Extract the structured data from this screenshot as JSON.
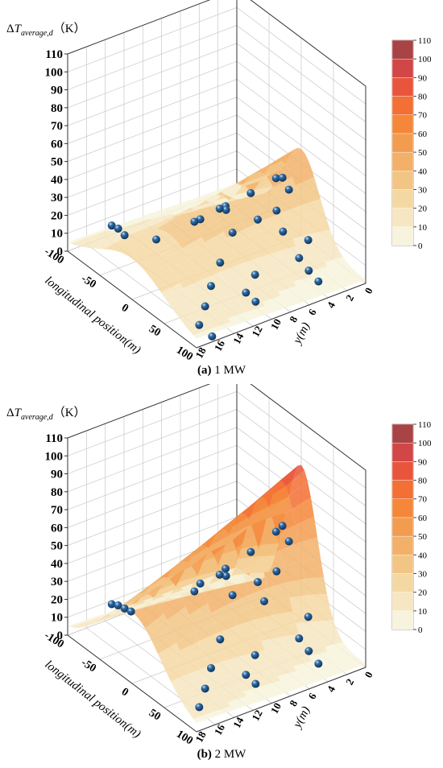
{
  "colors": {
    "scale": [
      "#f7f3dc",
      "#f6e6c1",
      "#f4d8a3",
      "#f2c585",
      "#f2b069",
      "#f39c50",
      "#f48739",
      "#f36f34",
      "#e9553c",
      "#d14646",
      "#a84444"
    ],
    "sphere": "#2e6aa5"
  },
  "chart_data": [
    {
      "type": "surface",
      "panel_label": "(a)",
      "title": "1 MW",
      "zlabel_main": "ΔT",
      "zlabel_sub": "average,d",
      "zlabel_unit": "（K）",
      "xlabel": "longitudinal position(m)",
      "ylabel": "y(m)",
      "x_ticks": [
        -100,
        -50,
        0,
        50,
        100
      ],
      "y_ticks": [
        0,
        2,
        4,
        6,
        8,
        10,
        12,
        14,
        16,
        18
      ],
      "z_ticks": [
        0,
        10,
        20,
        30,
        40,
        50,
        60,
        70,
        80,
        90,
        100,
        110
      ],
      "xlim": [
        -100,
        100
      ],
      "ylim": [
        0,
        18
      ],
      "zlim": [
        0,
        110
      ],
      "colorbar_ticks": [
        0,
        10,
        20,
        30,
        40,
        50,
        60,
        70,
        80,
        90,
        100,
        110
      ],
      "surface_peak": 48,
      "surface_peak_x": 0,
      "surface_base": 2,
      "surface_width": 40,
      "measured_points": [
        {
          "x": -90,
          "y": 14,
          "z": 9
        },
        {
          "x": -80,
          "y": 14,
          "z": 10
        },
        {
          "x": -70,
          "y": 14,
          "z": 9
        },
        {
          "x": -50,
          "y": 12,
          "z": 8
        },
        {
          "x": -40,
          "y": 8,
          "z": 14
        },
        {
          "x": -30,
          "y": 6,
          "z": 20
        },
        {
          "x": -20,
          "y": 4,
          "z": 26
        },
        {
          "x": -10,
          "y": 2,
          "z": 33
        },
        {
          "x": 0,
          "y": 2,
          "z": 36
        },
        {
          "x": 10,
          "y": 2,
          "z": 32
        },
        {
          "x": 20,
          "y": 4,
          "z": 27
        },
        {
          "x": 30,
          "y": 4,
          "z": 18
        },
        {
          "x": 10,
          "y": 8,
          "z": 20
        },
        {
          "x": 20,
          "y": 10,
          "z": 10
        },
        {
          "x": 35,
          "y": 12,
          "z": 5
        },
        {
          "x": 55,
          "y": 14,
          "z": 3
        },
        {
          "x": 75,
          "y": 16,
          "z": 2
        },
        {
          "x": 95,
          "y": 16,
          "z": 1
        },
        {
          "x": 45,
          "y": 8,
          "z": 6
        },
        {
          "x": 60,
          "y": 10,
          "z": 4
        },
        {
          "x": 75,
          "y": 10,
          "z": 3
        },
        {
          "x": 40,
          "y": 2,
          "z": 12
        },
        {
          "x": 55,
          "y": 4,
          "z": 10
        },
        {
          "x": 70,
          "y": 4,
          "z": 7
        },
        {
          "x": 85,
          "y": 4,
          "z": 5
        },
        {
          "x": 0,
          "y": 8,
          "z": 30
        },
        {
          "x": -10,
          "y": 8,
          "z": 28
        },
        {
          "x": 20,
          "y": 6,
          "z": 26
        },
        {
          "x": -20,
          "y": 10,
          "z": 22
        }
      ]
    },
    {
      "type": "surface",
      "panel_label": "(b)",
      "title": "2 MW",
      "zlabel_main": "ΔT",
      "zlabel_sub": "average,d",
      "zlabel_unit": "（K）",
      "xlabel": "longitudinal position(m)",
      "ylabel": "y(m)",
      "x_ticks": [
        -100,
        -50,
        0,
        50,
        100
      ],
      "y_ticks": [
        0,
        2,
        4,
        6,
        8,
        10,
        12,
        14,
        16,
        18
      ],
      "z_ticks": [
        0,
        10,
        20,
        30,
        40,
        50,
        60,
        70,
        80,
        90,
        100,
        110
      ],
      "xlim": [
        -100,
        100
      ],
      "ylim": [
        0,
        18
      ],
      "zlim": [
        0,
        110
      ],
      "colorbar_ticks": [
        0,
        10,
        20,
        30,
        40,
        50,
        60,
        70,
        80,
        90,
        100,
        110
      ],
      "surface_peak": 86,
      "surface_peak_x": 0,
      "surface_base": 2,
      "surface_width": 35,
      "measured_points": [
        {
          "x": -90,
          "y": 14,
          "z": 12
        },
        {
          "x": -80,
          "y": 14,
          "z": 14
        },
        {
          "x": -70,
          "y": 14,
          "z": 15
        },
        {
          "x": -60,
          "y": 14,
          "z": 16
        },
        {
          "x": -40,
          "y": 8,
          "z": 25
        },
        {
          "x": -30,
          "y": 6,
          "z": 32
        },
        {
          "x": -20,
          "y": 4,
          "z": 40
        },
        {
          "x": -10,
          "y": 2,
          "z": 50
        },
        {
          "x": 0,
          "y": 2,
          "z": 56
        },
        {
          "x": 10,
          "y": 2,
          "z": 50
        },
        {
          "x": 20,
          "y": 4,
          "z": 40
        },
        {
          "x": 30,
          "y": 6,
          "z": 30
        },
        {
          "x": 10,
          "y": 8,
          "z": 32
        },
        {
          "x": 20,
          "y": 10,
          "z": 14
        },
        {
          "x": 35,
          "y": 12,
          "z": 6
        },
        {
          "x": 55,
          "y": 14,
          "z": 4
        },
        {
          "x": 75,
          "y": 16,
          "z": 3
        },
        {
          "x": 45,
          "y": 8,
          "z": 8
        },
        {
          "x": 60,
          "y": 10,
          "z": 5
        },
        {
          "x": 75,
          "y": 10,
          "z": 4
        },
        {
          "x": 40,
          "y": 2,
          "z": 16
        },
        {
          "x": 55,
          "y": 4,
          "z": 12
        },
        {
          "x": 70,
          "y": 4,
          "z": 9
        },
        {
          "x": 85,
          "y": 4,
          "z": 6
        },
        {
          "x": 0,
          "y": 8,
          "z": 40
        },
        {
          "x": -10,
          "y": 8,
          "z": 38
        },
        {
          "x": 20,
          "y": 6,
          "z": 38
        },
        {
          "x": -20,
          "y": 10,
          "z": 30
        }
      ]
    }
  ]
}
